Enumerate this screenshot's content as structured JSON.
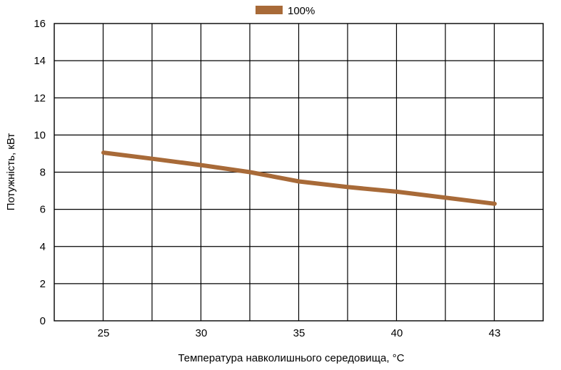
{
  "chart_data": {
    "type": "line",
    "x": [
      25,
      27.5,
      30,
      32.5,
      35,
      37.5,
      40,
      43
    ],
    "x_categories": [
      "25",
      "30",
      "35",
      "40",
      "43"
    ],
    "series": [
      {
        "name": "100%",
        "color": "#a86a38",
        "values": [
          9.05,
          8.72,
          8.38,
          8.0,
          7.5,
          7.2,
          6.95,
          6.3
        ]
      }
    ],
    "xlabel": "Температура навколишнього середовища, °C",
    "ylabel": "Потужність, кВт",
    "yticks": [
      "0",
      "2",
      "4",
      "6",
      "8",
      "10",
      "12",
      "14",
      "16"
    ],
    "ylim": [
      0,
      16
    ],
    "grid": true,
    "legend_position": "top-center"
  }
}
